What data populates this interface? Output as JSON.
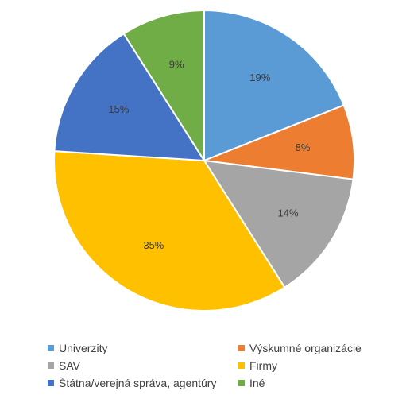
{
  "chart_data": {
    "type": "pie",
    "start_angle_deg": 0,
    "direction": "clockwise",
    "slices": [
      {
        "label": "Univerzity",
        "value": 19,
        "display": "19%",
        "color": "#5B9BD5"
      },
      {
        "label": "Výskumné organizácie",
        "value": 8,
        "display": "8%",
        "color": "#ED7D31"
      },
      {
        "label": "SAV",
        "value": 14,
        "display": "14%",
        "color": "#A5A5A5"
      },
      {
        "label": "Firmy",
        "value": 35,
        "display": "35%",
        "color": "#FFC000"
      },
      {
        "label": "Štátna/verejná správa, agentúry",
        "value": 15,
        "display": "15%",
        "color": "#4472C4"
      },
      {
        "label": "Iné",
        "value": 9,
        "display": "9%",
        "color": "#70AD47"
      }
    ],
    "legend_position": "bottom"
  }
}
